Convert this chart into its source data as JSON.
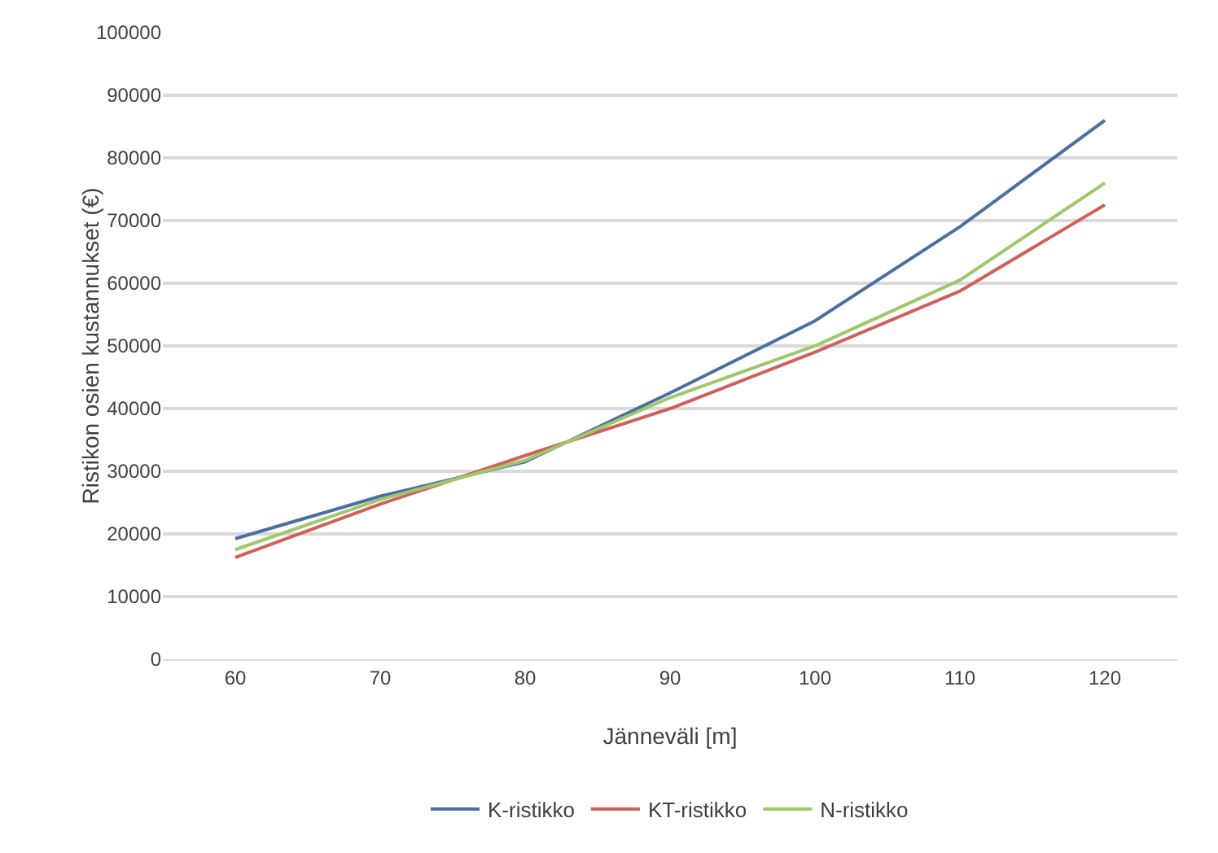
{
  "chart_data": {
    "type": "line",
    "xlabel": "Jänneväli [m]",
    "ylabel": "Ristikon osien kustannukset (€)",
    "categories": [
      "60",
      "70",
      "80",
      "90",
      "100",
      "110",
      "120"
    ],
    "series": [
      {
        "name": "K-ristikko",
        "color": "#4a6fa0",
        "values": [
          19250,
          26000,
          31500,
          42500,
          54000,
          69000,
          86000
        ]
      },
      {
        "name": "KT-ristikko",
        "color": "#d0605c",
        "values": [
          16250,
          24750,
          32500,
          40000,
          49000,
          58750,
          72500
        ]
      },
      {
        "name": "N-ristikko",
        "color": "#9ec86a",
        "values": [
          17500,
          25500,
          31750,
          41750,
          50000,
          60500,
          76000
        ]
      }
    ],
    "ylim": [
      0,
      100000
    ],
    "yticks": [
      0,
      10000,
      20000,
      30000,
      40000,
      50000,
      60000,
      70000,
      80000,
      90000,
      100000
    ],
    "grid": "y",
    "legend": "bottom",
    "marker": "none",
    "line_style": "solid"
  }
}
